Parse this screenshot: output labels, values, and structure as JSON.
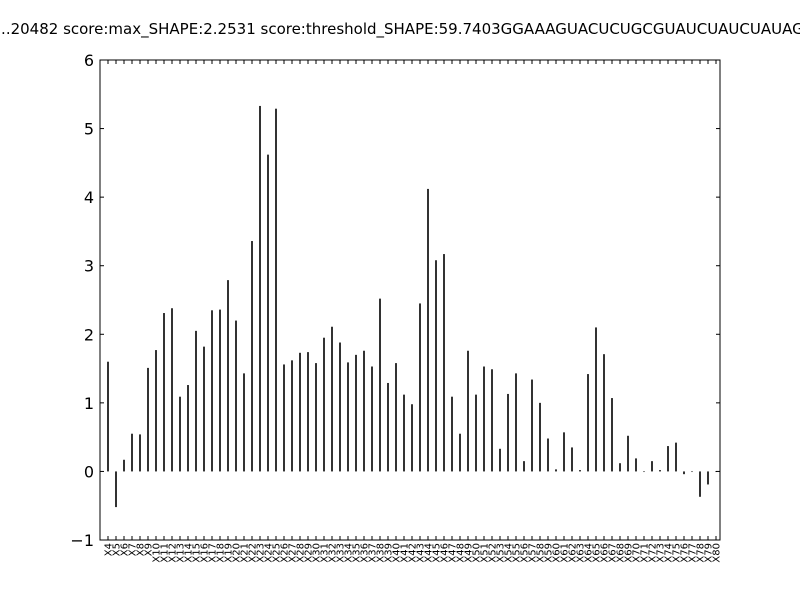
{
  "chart_data": {
    "type": "bar",
    "title": "...20482 score:max_SHAPE:2.2531 score:threshold_SHAPE:59.7403GGAAAGUACUCUGCGUAUCUAUCUAUAG",
    "xlabel": "",
    "ylabel": "",
    "ylim": [
      -1,
      6
    ],
    "yticks": [
      "−1",
      "0",
      "1",
      "2",
      "3",
      "4",
      "5",
      "6"
    ],
    "ytick_values": [
      -1,
      0,
      1,
      2,
      3,
      4,
      5,
      6
    ],
    "grid": false,
    "categories": [
      "X4",
      "X5",
      "X6",
      "X7",
      "X8",
      "X9",
      "X10",
      "X11",
      "X12",
      "X13",
      "X14",
      "X15",
      "X16",
      "X17",
      "X18",
      "X19",
      "X20",
      "X21",
      "X22",
      "X23",
      "X24",
      "X25",
      "X26",
      "X27",
      "X28",
      "X29",
      "X30",
      "X31",
      "X32",
      "X33",
      "X34",
      "X35",
      "X36",
      "X37",
      "X38",
      "X39",
      "X40",
      "X41",
      "X42",
      "X43",
      "X44",
      "X45",
      "X46",
      "X47",
      "X48",
      "X49",
      "X50",
      "X51",
      "X52",
      "X53",
      "X54",
      "X55",
      "X56",
      "X57",
      "X58",
      "X59",
      "X60",
      "X61",
      "X62",
      "X63",
      "X64",
      "X65",
      "X66",
      "X67",
      "X68",
      "X69",
      "X70",
      "X71",
      "X72",
      "X73",
      "X74",
      "X75",
      "X76",
      "X77",
      "X78",
      "X79",
      "X80"
    ],
    "values": [
      1.6,
      -0.52,
      0.17,
      0.55,
      0.54,
      1.51,
      1.77,
      2.31,
      2.38,
      1.09,
      1.26,
      2.05,
      1.82,
      2.35,
      2.36,
      2.79,
      2.2,
      1.43,
      3.36,
      5.33,
      4.62,
      5.29,
      1.56,
      1.62,
      1.73,
      1.74,
      1.58,
      1.95,
      2.11,
      1.88,
      1.59,
      1.7,
      1.76,
      1.53,
      2.52,
      1.29,
      1.58,
      1.12,
      0.98,
      2.45,
      4.12,
      3.08,
      3.17,
      1.09,
      0.55,
      1.76,
      1.12,
      1.53,
      1.49,
      0.33,
      1.13,
      1.43,
      0.15,
      1.34,
      1.0,
      0.48,
      0.03,
      0.57,
      0.35,
      0.02,
      1.42,
      2.1,
      1.71,
      1.07,
      0.12,
      0.52,
      0.19,
      0.0,
      0.15,
      0.02,
      0.37,
      0.42,
      -0.04,
      0.0,
      -0.37,
      -0.19,
      0.0
    ],
    "bar_color": "#000000"
  }
}
